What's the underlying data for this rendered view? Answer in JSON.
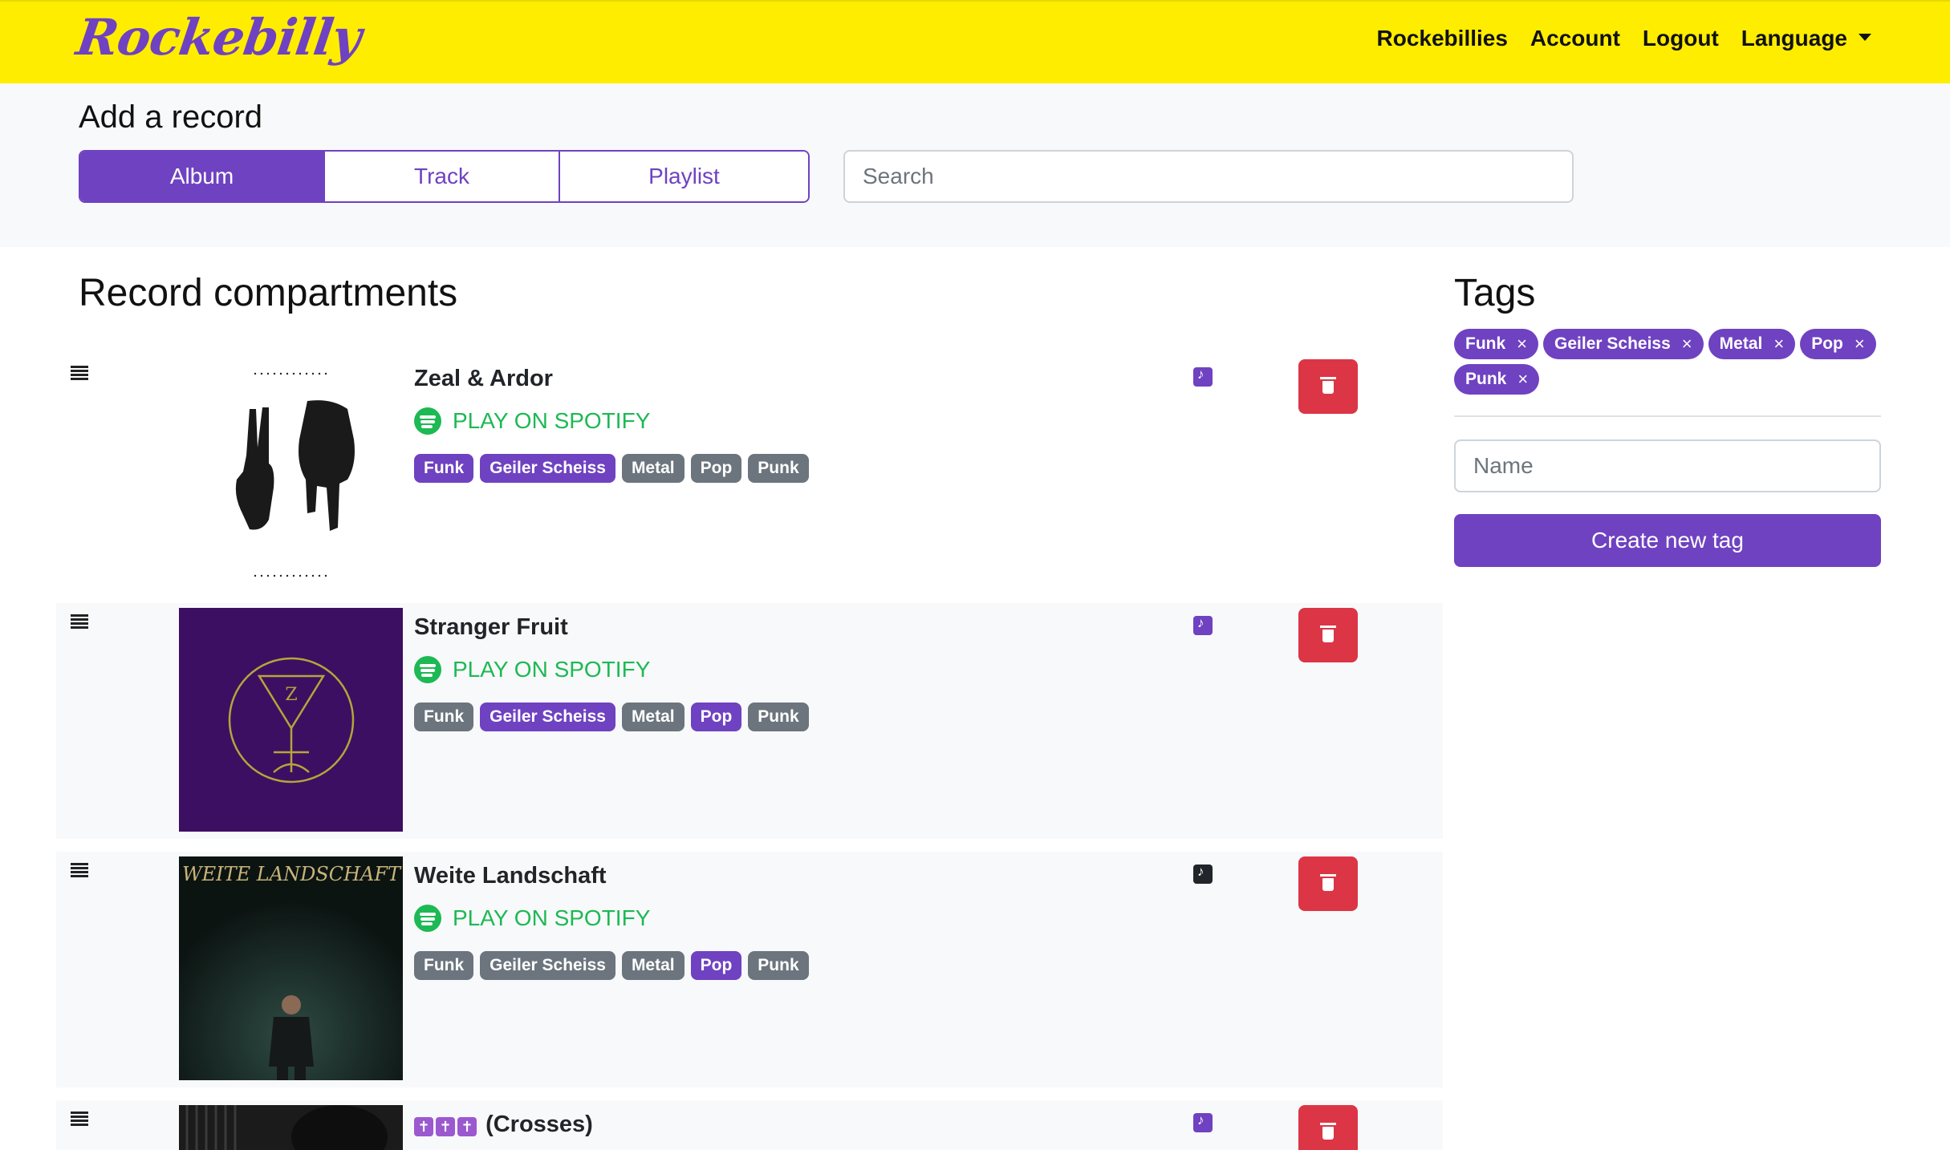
{
  "nav": {
    "brand": "Rockebilly",
    "links": [
      "Rockebillies",
      "Account",
      "Logout",
      "Language"
    ]
  },
  "add_record": {
    "heading": "Add a record",
    "tabs": [
      "Album",
      "Track",
      "Playlist"
    ],
    "active_tab": "Album",
    "search_placeholder": "Search"
  },
  "compartments": {
    "heading": "Record compartments",
    "spotify_label": "PLAY ON SPOTIFY",
    "records": [
      {
        "title": "Zeal & Ardor",
        "type": "playlist",
        "tags": [
          {
            "label": "Funk",
            "active": true
          },
          {
            "label": "Geiler Scheiss",
            "active": true
          },
          {
            "label": "Metal",
            "active": false
          },
          {
            "label": "Pop",
            "active": false
          },
          {
            "label": "Punk",
            "active": false
          }
        ]
      },
      {
        "title": "Stranger Fruit",
        "type": "playlist",
        "tags": [
          {
            "label": "Funk",
            "active": false
          },
          {
            "label": "Geiler Scheiss",
            "active": true
          },
          {
            "label": "Metal",
            "active": false
          },
          {
            "label": "Pop",
            "active": true
          },
          {
            "label": "Punk",
            "active": false
          }
        ]
      },
      {
        "title": "Weite Landschaft",
        "type": "track",
        "cover_text": "WEITE LANDSCHAFT",
        "tags": [
          {
            "label": "Funk",
            "active": false
          },
          {
            "label": "Geiler Scheiss",
            "active": false
          },
          {
            "label": "Metal",
            "active": false
          },
          {
            "label": "Pop",
            "active": true
          },
          {
            "label": "Punk",
            "active": false
          }
        ]
      },
      {
        "title": "(Crosses)",
        "emoji": "✝",
        "type": "playlist",
        "tags": []
      }
    ]
  },
  "tags_panel": {
    "heading": "Tags",
    "tags": [
      "Funk",
      "Geiler Scheiss",
      "Metal",
      "Pop",
      "Punk"
    ],
    "remove_glyph": "×",
    "name_placeholder": "Name",
    "create_label": "Create new tag"
  },
  "colors": {
    "navbar": "#ffed00",
    "accent": "#6f42c1",
    "spotify": "#1db954",
    "danger": "#dc3545",
    "badge_inactive": "#6c757d"
  }
}
